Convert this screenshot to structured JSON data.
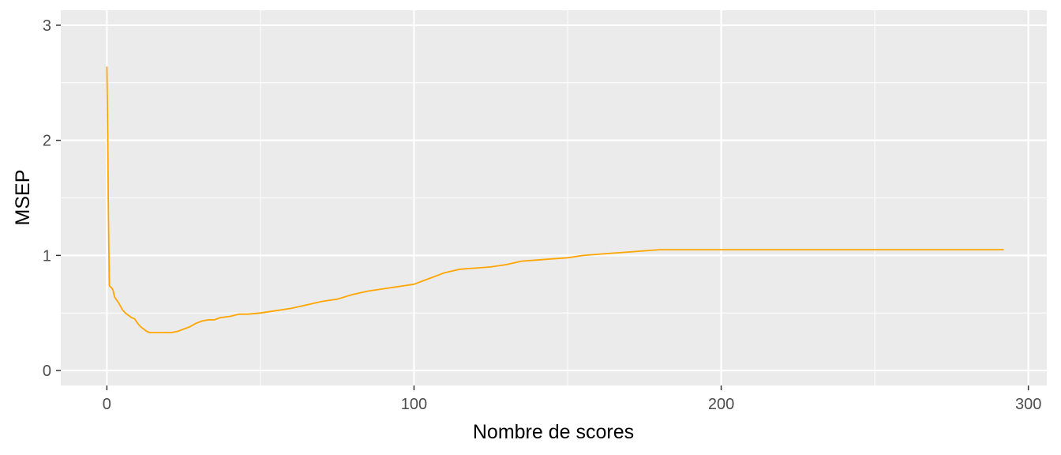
{
  "chart_data": {
    "type": "line",
    "title": "",
    "xlabel": "Nombre de scores",
    "ylabel": "MSEP",
    "xlim": [
      -15,
      306
    ],
    "ylim": [
      -0.13,
      3.13
    ],
    "x_ticks": [
      0,
      100,
      200,
      300
    ],
    "y_ticks": [
      0,
      1,
      2,
      3
    ],
    "x_minor": [
      50,
      150,
      250
    ],
    "y_minor": [
      0.5,
      1.5,
      2.5
    ],
    "grid": true,
    "legend": "none",
    "colors": {
      "line": "#FFA500",
      "panel": "#EBEBEB",
      "grid": "#FFFFFF"
    },
    "series": [
      {
        "x": [
          0,
          0.3,
          0.5,
          0.8,
          1,
          1.5,
          2,
          2.5,
          3,
          4,
          5,
          6,
          7,
          8,
          9,
          10,
          11,
          12,
          13,
          14,
          15,
          17,
          19,
          21,
          23,
          25,
          27,
          29,
          31,
          33,
          35,
          37,
          40,
          43,
          46,
          50,
          55,
          60,
          65,
          70,
          75,
          80,
          85,
          90,
          95,
          100,
          105,
          110,
          115,
          120,
          125,
          130,
          135,
          140,
          145,
          150,
          155,
          160,
          165,
          170,
          175,
          180,
          185,
          190,
          200,
          220,
          240,
          260,
          280,
          292
        ],
        "y": [
          2.64,
          2.0,
          1.36,
          0.74,
          0.73,
          0.72,
          0.7,
          0.64,
          0.62,
          0.58,
          0.53,
          0.5,
          0.48,
          0.46,
          0.45,
          0.41,
          0.38,
          0.36,
          0.34,
          0.33,
          0.33,
          0.33,
          0.33,
          0.33,
          0.34,
          0.36,
          0.38,
          0.41,
          0.43,
          0.44,
          0.44,
          0.46,
          0.47,
          0.49,
          0.49,
          0.5,
          0.52,
          0.54,
          0.57,
          0.6,
          0.62,
          0.66,
          0.69,
          0.71,
          0.73,
          0.75,
          0.8,
          0.85,
          0.88,
          0.89,
          0.9,
          0.92,
          0.95,
          0.96,
          0.97,
          0.98,
          1.0,
          1.01,
          1.02,
          1.03,
          1.04,
          1.05,
          1.05,
          1.05,
          1.05,
          1.05,
          1.05,
          1.05,
          1.05,
          1.05
        ]
      }
    ]
  }
}
